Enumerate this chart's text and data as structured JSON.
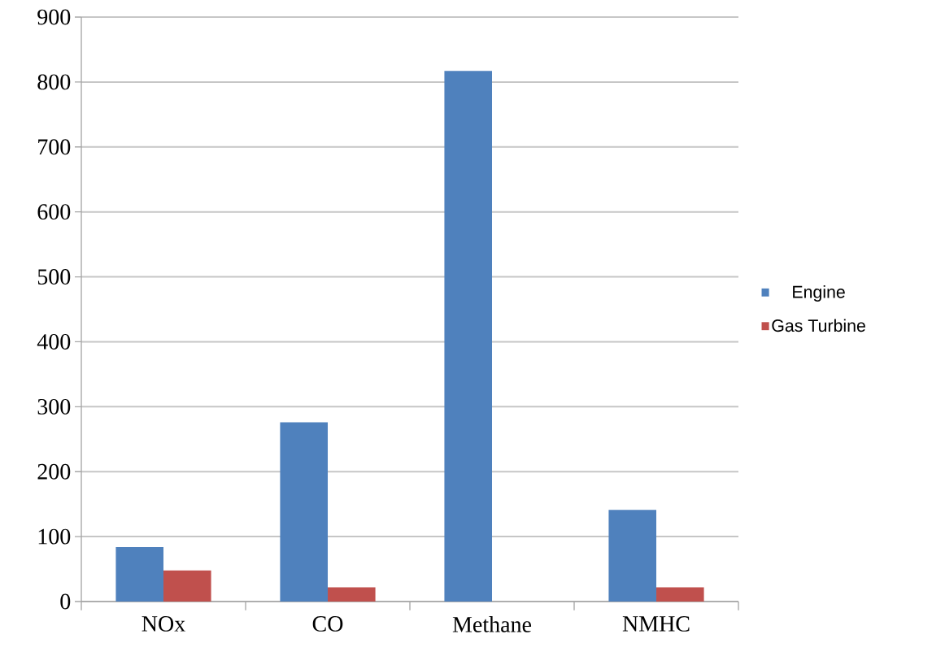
{
  "chart_data": {
    "type": "bar",
    "categories": [
      "NOx",
      "CO",
      "Methane",
      "NMHC"
    ],
    "series": [
      {
        "name": "Engine",
        "color": "#4f81bd",
        "values": [
          84,
          276,
          817,
          141
        ]
      },
      {
        "name": "Gas Turbine",
        "color": "#c0504d",
        "values": [
          48,
          22,
          null,
          22
        ]
      }
    ],
    "ylim": [
      0,
      900
    ],
    "yticks": [
      0,
      100,
      200,
      300,
      400,
      500,
      600,
      700,
      800,
      900
    ],
    "grid": "y",
    "legend": "right"
  }
}
